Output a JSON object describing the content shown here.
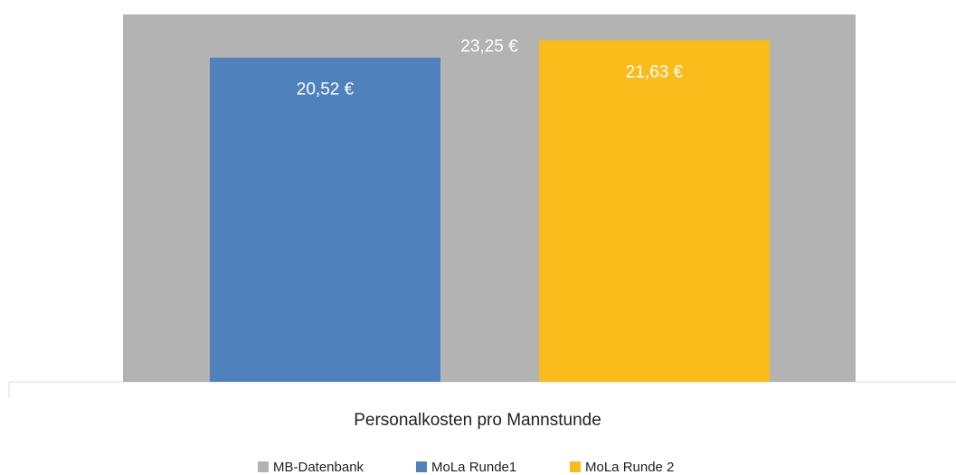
{
  "chart_data": {
    "type": "bar",
    "categories": [
      "Personalkosten pro Mannstunde"
    ],
    "series": [
      {
        "name": "MB-Datenbank",
        "color": "#b3b3b3",
        "values": [
          23.25
        ],
        "value_labels": [
          "23,25 €"
        ]
      },
      {
        "name": "MoLa Runde1",
        "color": "#4f81bd",
        "values": [
          20.52
        ],
        "value_labels": [
          "20,52 €"
        ]
      },
      {
        "name": "MoLa Runde 2",
        "color": "#f9bc1b",
        "values": [
          21.63
        ],
        "value_labels": [
          "21,63 €"
        ]
      }
    ]
  }
}
